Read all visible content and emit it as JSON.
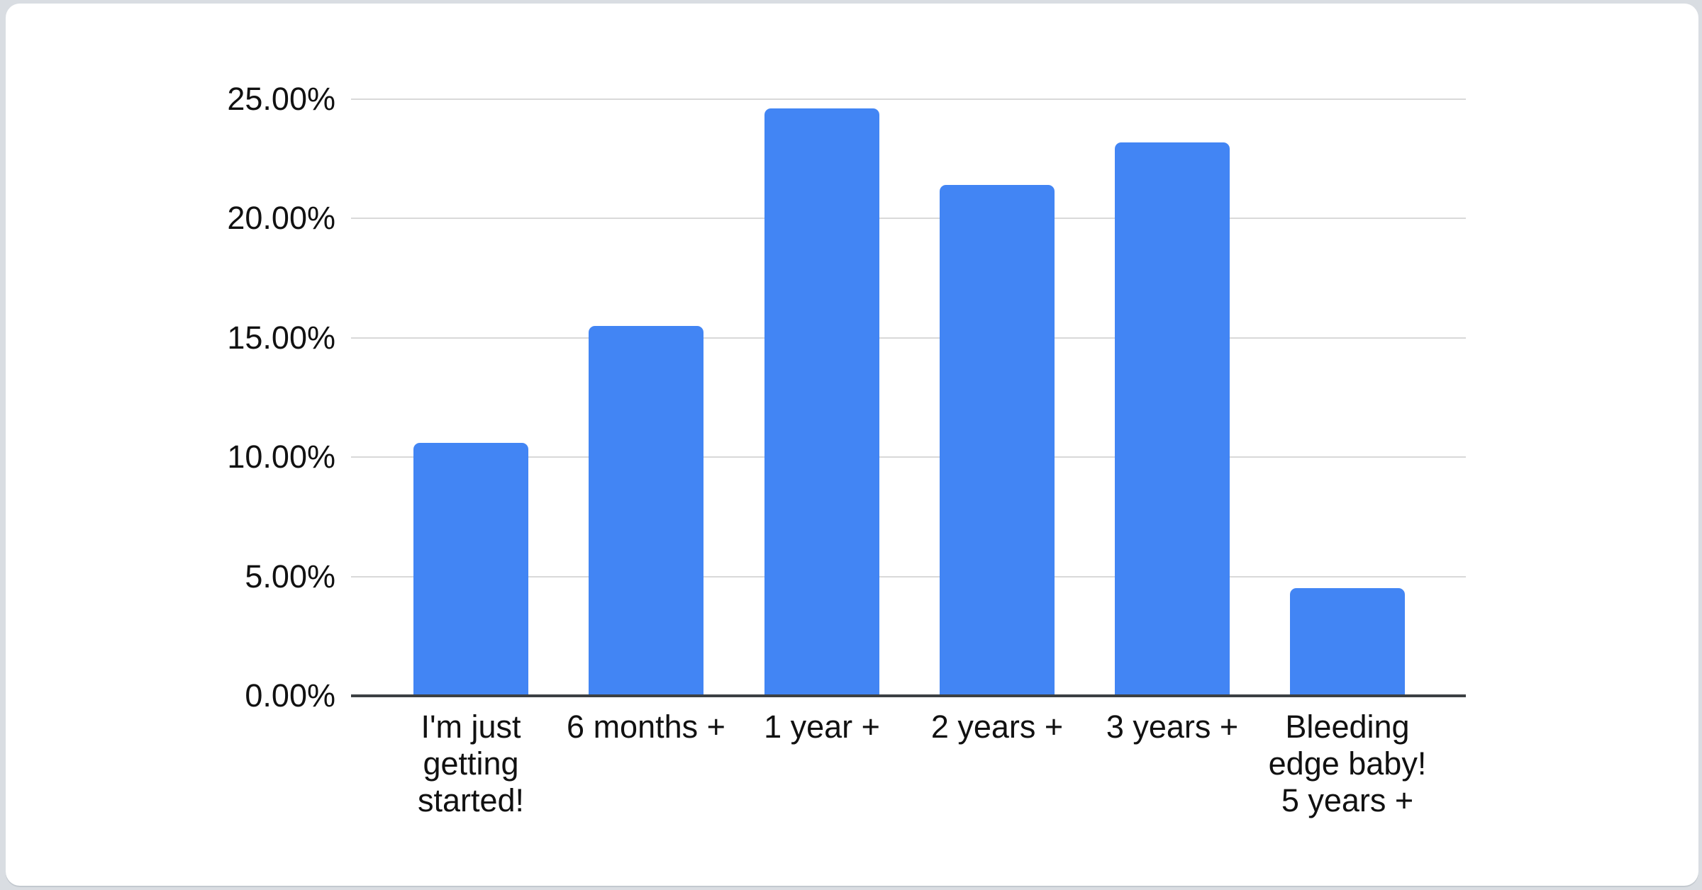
{
  "page": {
    "background_color": "#d9dde2",
    "card_background": "#ffffff"
  },
  "chart_data": {
    "type": "bar",
    "categories": [
      "I'm just getting started!",
      "6 months +",
      "1 year +",
      "2 years +",
      "3 years +",
      "Bleeding edge baby! 5 years +"
    ],
    "values": [
      10.6,
      15.5,
      24.6,
      21.4,
      23.2,
      4.5
    ],
    "value_unit": "%",
    "ylim": [
      0,
      25
    ],
    "ytick_step": 5,
    "ytick_labels": [
      "0.00%",
      "5.00%",
      "10.00%",
      "15.00%",
      "20.00%",
      "25.00%"
    ],
    "grid": true,
    "legend_position": "none",
    "bar_color": "#4285f4",
    "gridline_color": "#d9d9d9",
    "axis_line_color": "#3c4043",
    "label_color": "#111111"
  }
}
